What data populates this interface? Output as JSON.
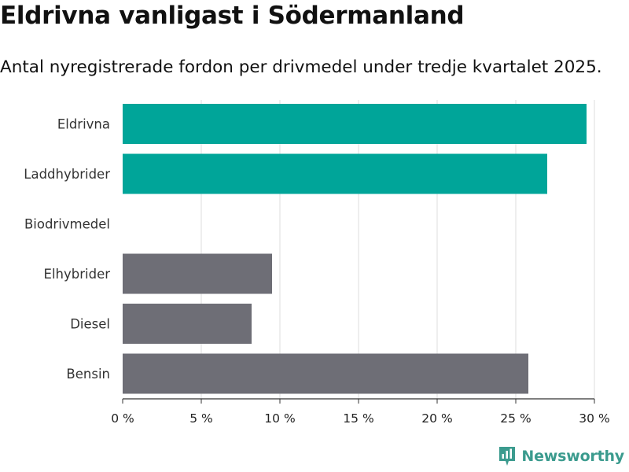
{
  "header": {
    "title": "Eldrivna vanligast i Södermanland",
    "subtitle": "Antal nyregistrerade fordon per drivmedel under tredje kvartalet 2025."
  },
  "chart_data": {
    "type": "bar",
    "orientation": "horizontal",
    "title": "Eldrivna vanligast i Södermanland",
    "subtitle": "Antal nyregistrerade fordon per drivmedel under tredje kvartalet 2025.",
    "xlabel": "",
    "ylabel": "",
    "unit": "%",
    "xlim": [
      0,
      30
    ],
    "xticks": [
      0,
      5,
      10,
      15,
      20,
      25,
      30
    ],
    "xtick_labels": [
      "0 %",
      "5 %",
      "10 %",
      "15 %",
      "20 %",
      "25 %",
      "30 %"
    ],
    "grid": true,
    "categories": [
      "Eldrivna",
      "Laddhybrider",
      "Biodrivmedel",
      "Elhybrider",
      "Diesel",
      "Bensin"
    ],
    "values": [
      29.5,
      27.0,
      0,
      9.5,
      8.2,
      25.8
    ],
    "colors": [
      "#00a599",
      "#00a599",
      "#00a599",
      "#6e6e76",
      "#6e6e76",
      "#6e6e76"
    ]
  },
  "colors": {
    "highlight": "#00a599",
    "neutral": "#6e6e76",
    "grid": "#dddddd",
    "brand": "#3b9b8e"
  },
  "branding": {
    "name": "Newsworthy",
    "icon": "newsworthy-logo-icon"
  }
}
